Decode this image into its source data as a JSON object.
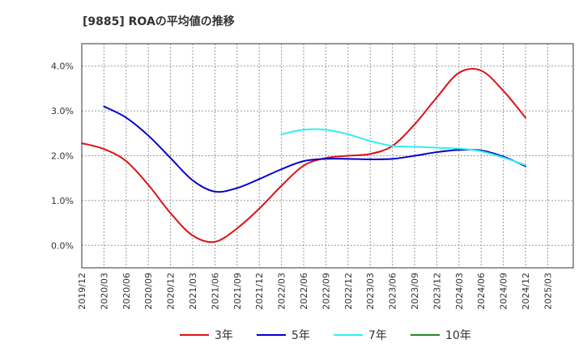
{
  "chart_data": {
    "type": "line",
    "title": "[9885]  ROAの平均値の推移",
    "x": [
      "2019/12",
      "2020/03",
      "2020/06",
      "2020/09",
      "2020/12",
      "2021/03",
      "2021/06",
      "2021/09",
      "2021/12",
      "2022/03",
      "2022/06",
      "2022/09",
      "2022/12",
      "2023/03",
      "2023/06",
      "2023/09",
      "2023/12",
      "2024/03",
      "2024/06",
      "2024/09",
      "2024/12",
      "2025/03"
    ],
    "y_ticks": [
      "0.0%",
      "1.0%",
      "2.0%",
      "3.0%",
      "4.0%"
    ],
    "ylim": [
      -0.5,
      4.5
    ],
    "grid": true,
    "legend_position": "bottom",
    "series": [
      {
        "name": "3年",
        "color": "#dd1111",
        "values": [
          2.28,
          2.15,
          1.88,
          1.35,
          0.72,
          0.22,
          0.08,
          0.38,
          0.82,
          1.33,
          1.78,
          1.95,
          2.0,
          2.04,
          2.22,
          2.7,
          3.3,
          3.85,
          3.9,
          3.45,
          2.85,
          null
        ]
      },
      {
        "name": "5年",
        "color": "#0000cc",
        "values": [
          null,
          3.1,
          2.85,
          2.45,
          1.95,
          1.45,
          1.2,
          1.28,
          1.48,
          1.7,
          1.88,
          1.93,
          1.93,
          1.92,
          1.93,
          2.0,
          2.08,
          2.13,
          2.12,
          1.98,
          1.77,
          null
        ]
      },
      {
        "name": "7年",
        "color": "#33eeee",
        "values": [
          null,
          null,
          null,
          null,
          null,
          null,
          null,
          null,
          null,
          2.48,
          2.58,
          2.58,
          2.48,
          2.33,
          2.22,
          2.2,
          2.18,
          2.16,
          2.1,
          1.96,
          1.79,
          null
        ]
      },
      {
        "name": "10年",
        "color": "#228822",
        "values": [
          null,
          null,
          null,
          null,
          null,
          null,
          null,
          null,
          null,
          null,
          null,
          null,
          null,
          null,
          null,
          null,
          null,
          null,
          null,
          null,
          null,
          null
        ]
      }
    ]
  }
}
